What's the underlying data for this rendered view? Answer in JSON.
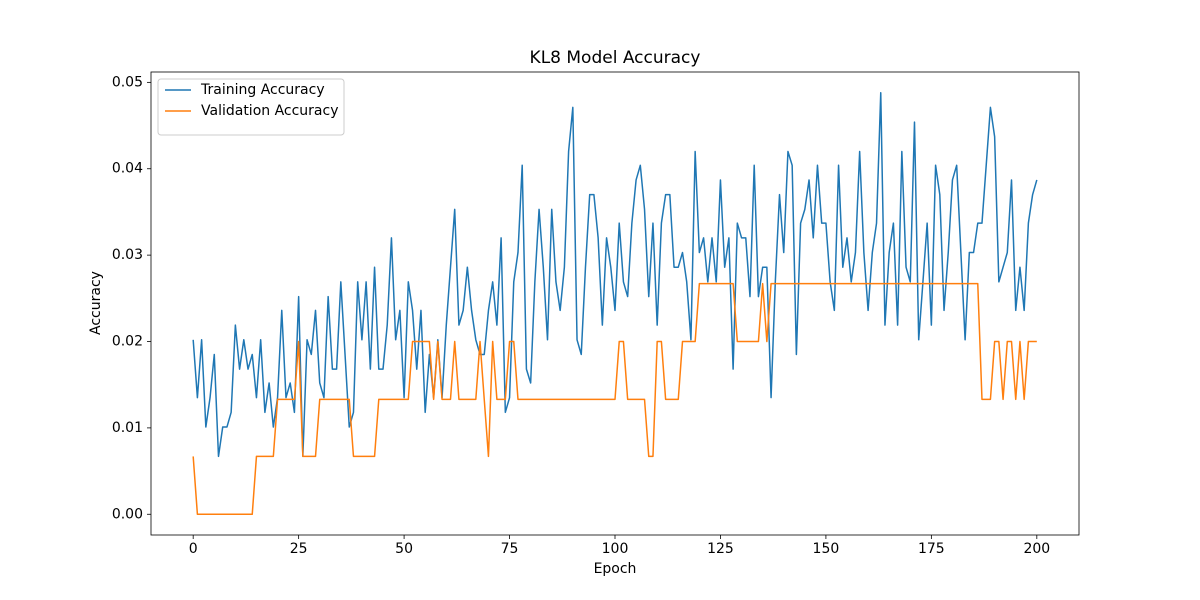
{
  "chart_data": {
    "type": "line",
    "title": "KL8 Model Accuracy",
    "x_label": "Epoch",
    "y_label": "Accuracy",
    "x": [
      0,
      1,
      2,
      3,
      4,
      5,
      6,
      7,
      8,
      9,
      10,
      11,
      12,
      13,
      14,
      15,
      16,
      17,
      18,
      19,
      20,
      21,
      22,
      23,
      24,
      25,
      26,
      27,
      28,
      29,
      30,
      31,
      32,
      33,
      34,
      35,
      36,
      37,
      38,
      39,
      40,
      41,
      42,
      43,
      44,
      45,
      46,
      47,
      48,
      49,
      50,
      51,
      52,
      53,
      54,
      55,
      56,
      57,
      58,
      59,
      60,
      61,
      62,
      63,
      64,
      65,
      66,
      67,
      68,
      69,
      70,
      71,
      72,
      73,
      74,
      75,
      76,
      77,
      78,
      79,
      80,
      81,
      82,
      83,
      84,
      85,
      86,
      87,
      88,
      89,
      90,
      91,
      92,
      93,
      94,
      95,
      96,
      97,
      98,
      99,
      100,
      101,
      102,
      103,
      104,
      105,
      106,
      107,
      108,
      109,
      110,
      111,
      112,
      113,
      114,
      115,
      116,
      117,
      118,
      119,
      120,
      121,
      122,
      123,
      124,
      125,
      126,
      127,
      128,
      129,
      130,
      131,
      132,
      133,
      134,
      135,
      136,
      137,
      138,
      139,
      140,
      141,
      142,
      143,
      144,
      145,
      146,
      147,
      148,
      149,
      150,
      151,
      152,
      153,
      154,
      155,
      156,
      157,
      158,
      159,
      160,
      161,
      162,
      163,
      164,
      165,
      166,
      167,
      168,
      169,
      170,
      171,
      172,
      173,
      174,
      175,
      176,
      177,
      178,
      179,
      180,
      181,
      182,
      183,
      184,
      185,
      186,
      187,
      188,
      189,
      190,
      191,
      192,
      193,
      194,
      195,
      196,
      197,
      198,
      199,
      200
    ],
    "series": [
      {
        "name": "Training Accuracy",
        "color": "#1f77b4",
        "values": [
          0.0202,
          0.0135,
          0.0202,
          0.0101,
          0.0135,
          0.0185,
          0.0067,
          0.0101,
          0.0101,
          0.0118,
          0.0219,
          0.0168,
          0.0202,
          0.0168,
          0.0185,
          0.0135,
          0.0202,
          0.0118,
          0.0152,
          0.0101,
          0.0135,
          0.0236,
          0.0135,
          0.0152,
          0.0118,
          0.0252,
          0.0067,
          0.0202,
          0.0185,
          0.0236,
          0.0152,
          0.0135,
          0.0252,
          0.0168,
          0.0168,
          0.0269,
          0.0185,
          0.0101,
          0.0118,
          0.0269,
          0.0202,
          0.0269,
          0.0168,
          0.0286,
          0.0168,
          0.0168,
          0.0219,
          0.032,
          0.0202,
          0.0236,
          0.0135,
          0.0269,
          0.0236,
          0.0168,
          0.0236,
          0.0118,
          0.0185,
          0.0135,
          0.0202,
          0.0135,
          0.0219,
          0.0286,
          0.0353,
          0.0219,
          0.0236,
          0.0286,
          0.0236,
          0.0202,
          0.0185,
          0.0185,
          0.0236,
          0.0269,
          0.0219,
          0.032,
          0.0118,
          0.0135,
          0.0269,
          0.0303,
          0.0404,
          0.0168,
          0.0152,
          0.0269,
          0.0353,
          0.0286,
          0.0202,
          0.0353,
          0.0269,
          0.0236,
          0.0286,
          0.042,
          0.0471,
          0.0202,
          0.0185,
          0.0286,
          0.037,
          0.037,
          0.032,
          0.0219,
          0.032,
          0.0286,
          0.0236,
          0.0337,
          0.0269,
          0.0252,
          0.0337,
          0.0387,
          0.0404,
          0.0353,
          0.0252,
          0.0337,
          0.0219,
          0.0337,
          0.037,
          0.037,
          0.0286,
          0.0286,
          0.0303,
          0.0269,
          0.0202,
          0.042,
          0.0303,
          0.032,
          0.0269,
          0.032,
          0.0269,
          0.0387,
          0.0286,
          0.032,
          0.0168,
          0.0337,
          0.032,
          0.032,
          0.0252,
          0.0404,
          0.0252,
          0.0286,
          0.0286,
          0.0135,
          0.0269,
          0.037,
          0.0303,
          0.042,
          0.0404,
          0.0185,
          0.0337,
          0.0353,
          0.0387,
          0.032,
          0.0404,
          0.0337,
          0.0337,
          0.0269,
          0.0236,
          0.0404,
          0.0286,
          0.032,
          0.0269,
          0.0303,
          0.042,
          0.0303,
          0.0236,
          0.0303,
          0.0337,
          0.0488,
          0.0219,
          0.0303,
          0.0337,
          0.0219,
          0.042,
          0.0286,
          0.0269,
          0.0454,
          0.0202,
          0.0269,
          0.0337,
          0.0219,
          0.0404,
          0.037,
          0.0236,
          0.0303,
          0.0387,
          0.0404,
          0.0303,
          0.0202,
          0.0303,
          0.0303,
          0.0337,
          0.0337,
          0.0404,
          0.0471,
          0.0437,
          0.0269,
          0.0286,
          0.0303,
          0.0387,
          0.0236,
          0.0286,
          0.0236,
          0.0337,
          0.037,
          0.0387
        ]
      },
      {
        "name": "Validation Accuracy",
        "color": "#ff7f0e",
        "values": [
          0.0067,
          0,
          0,
          0,
          0,
          0,
          0,
          0,
          0,
          0,
          0,
          0,
          0,
          0,
          0,
          0.0067,
          0.0067,
          0.0067,
          0.0067,
          0.0067,
          0.0133,
          0.0133,
          0.0133,
          0.0133,
          0.0133,
          0.02,
          0.0067,
          0.0067,
          0.0067,
          0.0067,
          0.0133,
          0.0133,
          0.0133,
          0.0133,
          0.0133,
          0.0133,
          0.0133,
          0.0133,
          0.0067,
          0.0067,
          0.0067,
          0.0067,
          0.0067,
          0.0067,
          0.0133,
          0.0133,
          0.0133,
          0.0133,
          0.0133,
          0.0133,
          0.0133,
          0.0133,
          0.02,
          0.02,
          0.02,
          0.02,
          0.02,
          0.0133,
          0.02,
          0.0133,
          0.0133,
          0.0133,
          0.02,
          0.0133,
          0.0133,
          0.0133,
          0.0133,
          0.0133,
          0.02,
          0.0133,
          0.0067,
          0.02,
          0.0133,
          0.0133,
          0.0133,
          0.02,
          0.02,
          0.0133,
          0.0133,
          0.0133,
          0.0133,
          0.0133,
          0.0133,
          0.0133,
          0.0133,
          0.0133,
          0.0133,
          0.0133,
          0.0133,
          0.0133,
          0.0133,
          0.0133,
          0.0133,
          0.0133,
          0.0133,
          0.0133,
          0.0133,
          0.0133,
          0.0133,
          0.0133,
          0.0133,
          0.02,
          0.02,
          0.0133,
          0.0133,
          0.0133,
          0.0133,
          0.0133,
          0.0067,
          0.0067,
          0.02,
          0.02,
          0.0133,
          0.0133,
          0.0133,
          0.0133,
          0.02,
          0.02,
          0.02,
          0.02,
          0.0267,
          0.0267,
          0.0267,
          0.0267,
          0.0267,
          0.0267,
          0.0267,
          0.0267,
          0.0267,
          0.02,
          0.02,
          0.02,
          0.02,
          0.02,
          0.02,
          0.0267,
          0.02,
          0.0267,
          0.0267,
          0.0267,
          0.0267,
          0.0267,
          0.0267,
          0.0267,
          0.0267,
          0.0267,
          0.0267,
          0.0267,
          0.0267,
          0.0267,
          0.0267,
          0.0267,
          0.0267,
          0.0267,
          0.0267,
          0.0267,
          0.0267,
          0.0267,
          0.0267,
          0.0267,
          0.0267,
          0.0267,
          0.0267,
          0.0267,
          0.0267,
          0.0267,
          0.0267,
          0.0267,
          0.0267,
          0.0267,
          0.0267,
          0.0267,
          0.0267,
          0.0267,
          0.0267,
          0.0267,
          0.0267,
          0.0267,
          0.0267,
          0.0267,
          0.0267,
          0.0267,
          0.0267,
          0.0267,
          0.0267,
          0.0267,
          0.0267,
          0.0133,
          0.0133,
          0.0133,
          0.02,
          0.02,
          0.0133,
          0.02,
          0.02,
          0.0133,
          0.02,
          0.0133,
          0.02,
          0.02,
          0.02
        ]
      }
    ],
    "xlim": [
      -10,
      210
    ],
    "xticks": [
      0,
      25,
      50,
      75,
      100,
      125,
      150,
      175,
      200
    ],
    "ylim": [
      -0.0024,
      0.0512
    ],
    "yticks": [
      {
        "value": 0,
        "label": "0.00"
      },
      0.01,
      0.02,
      0.03,
      0.04,
      0.05
    ],
    "grid": false,
    "legend": "upper-left"
  }
}
